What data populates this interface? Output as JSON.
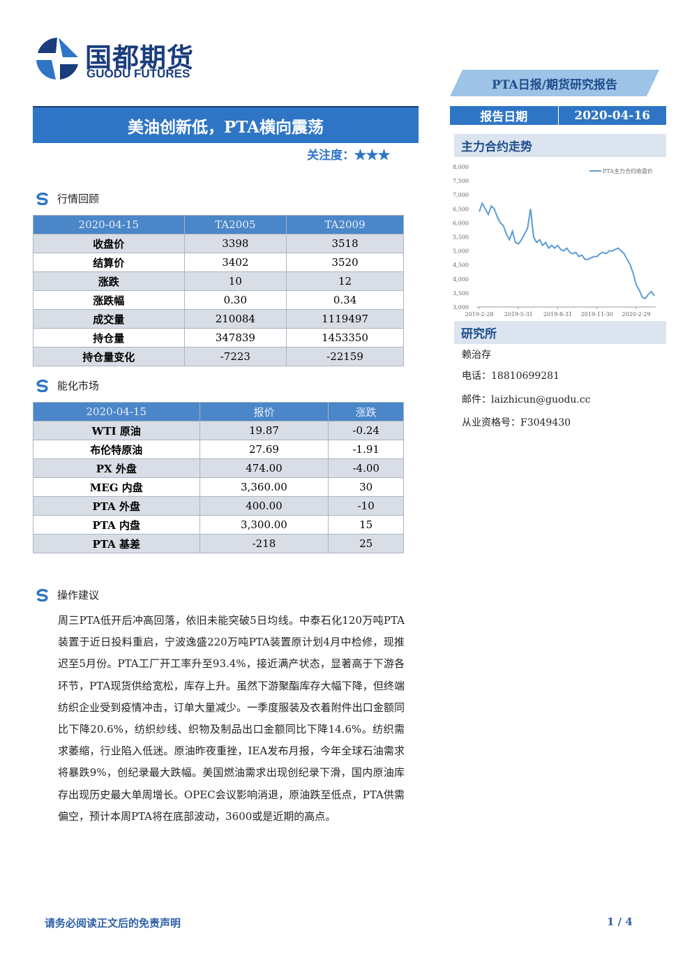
{
  "header": {
    "logo_cn": "国都期货",
    "logo_en": "GUODU FUTURES",
    "report_type": "PTA日报/期货研究报告",
    "date_label": "报告日期",
    "date": "2020-04-16",
    "title": "美油创新低，PTA横向震荡",
    "attention_label": "关注度：",
    "stars": "★★★"
  },
  "market_review": {
    "title": "行情回顾",
    "table": {
      "header": [
        "2020-04-15",
        "TA2005",
        "TA2009"
      ],
      "rows": [
        [
          "收盘价",
          "3398",
          "3518"
        ],
        [
          "结算价",
          "3402",
          "3520"
        ],
        [
          "涨跌",
          "10",
          "12"
        ],
        [
          "涨跌幅",
          "0.30",
          "0.34"
        ],
        [
          "成交量",
          "210084",
          "1119497"
        ],
        [
          "持仓量",
          "347839",
          "1453350"
        ],
        [
          "持仓量变化",
          "-7223",
          "-22159"
        ]
      ]
    }
  },
  "energy_market": {
    "title": "能化市场",
    "table": {
      "header": [
        "2020-04-15",
        "报价",
        "涨跌"
      ],
      "rows": [
        [
          "WTI 原油",
          "19.87",
          "-0.24"
        ],
        [
          "布伦特原油",
          "27.69",
          "-1.91"
        ],
        [
          "PX 外盘",
          "474.00",
          "-4.00"
        ],
        [
          "MEG 内盘",
          "3,360.00",
          "30"
        ],
        [
          "PTA 外盘",
          "400.00",
          "-10"
        ],
        [
          "PTA 内盘",
          "3,300.00",
          "15"
        ],
        [
          "PTA 基差",
          "-218",
          "25"
        ]
      ]
    }
  },
  "operation": {
    "title": "操作建议",
    "text": "周三PTA低开后冲高回落，依旧未能突破5日均线。中泰石化120万吨PTA装置于近日投料重启，宁波逸盛220万吨PTA装置原计划4月中检修，现推迟至5月份。PTA工厂开工率升至93.4%，接近满产状态，显著高于下游各环节，PTA现货供给宽松，库存上升。虽然下游聚酯库存大幅下降，但终端纺织企业受到疫情冲击，订单大量减少。一季度服装及衣着附件出口金额同比下降20.6%，纺织纱线、织物及制品出口金额同比下降14.6%。纺织需求萎缩，行业陷入低迷。原油昨夜重挫，IEA发布月报，今年全球石油需求将暴跌9%，创纪录最大跌幅。美国燃油需求出现创纪录下滑，国内原油库存出现历史最大单周增长。OPEC会议影响消退，原油跌至低点，PTA供需偏空，预计本周PTA将在底部波动，3600或是近期的高点。"
  },
  "sidebar": {
    "chart_title": "主力合约走势",
    "research_title": "研究所",
    "analyst": "赖治存",
    "phone": "电话：18810699281",
    "email": "邮件：laizhicun@guodu.cc",
    "license": "从业资格号：F3049430"
  },
  "footer": {
    "disclaimer": "请务必阅读正文后的免责声明",
    "page": "1 / 4"
  },
  "chart_data": {
    "type": "line",
    "categories": [
      "2019-2-28",
      null,
      null,
      null,
      null,
      null,
      null,
      null,
      null,
      null,
      null,
      null,
      null,
      "2019-5-31",
      null,
      null,
      null,
      null,
      null,
      null,
      null,
      null,
      null,
      null,
      null,
      null,
      "2019-8-31",
      null,
      null,
      null,
      null,
      null,
      null,
      null,
      null,
      null,
      null,
      null,
      null,
      "2019-11-30",
      null,
      null,
      null,
      null,
      null,
      null,
      null,
      null,
      null,
      null,
      null,
      null,
      "2020-2-29",
      null,
      null,
      null,
      null,
      null,
      null
    ],
    "series": [
      {
        "name": "PTA主力合约收盘价",
        "color": "#5b9bd5",
        "values": [
          6400,
          6700,
          6500,
          6300,
          6600,
          6500,
          6200,
          6000,
          5900,
          5600,
          5400,
          5700,
          5300,
          5250,
          5400,
          5600,
          5800,
          6500,
          5500,
          5300,
          5400,
          5200,
          5300,
          5100,
          5200,
          5100,
          5200,
          5050,
          5000,
          5100,
          4950,
          4900,
          4950,
          4800,
          4850,
          4700,
          4700,
          4750,
          4800,
          4800,
          4900,
          4950,
          4900,
          5000,
          5000,
          5050,
          5100,
          5000,
          4900,
          4700,
          4500,
          4200,
          3800,
          3600,
          3350,
          3300,
          3450,
          3550,
          3400
        ]
      }
    ],
    "ylim": [
      3000,
      8000
    ],
    "yticks": [
      {
        "value": 3000,
        "label": "3,000"
      },
      {
        "value": 3500,
        "label": "3,500"
      },
      {
        "value": 4000,
        "label": "4,000"
      },
      {
        "value": 4500,
        "label": "4,500"
      },
      {
        "value": 5000,
        "label": "5,000"
      },
      {
        "value": 5500,
        "label": "5,500"
      },
      {
        "value": 6000,
        "label": "6,000"
      },
      {
        "value": 6500,
        "label": "6,500"
      },
      {
        "value": 7000,
        "label": "7,000"
      },
      {
        "value": 7500,
        "label": "7,500"
      },
      {
        "value": 8000,
        "label": "8,000"
      }
    ],
    "legend": "top-right",
    "grid": false
  }
}
